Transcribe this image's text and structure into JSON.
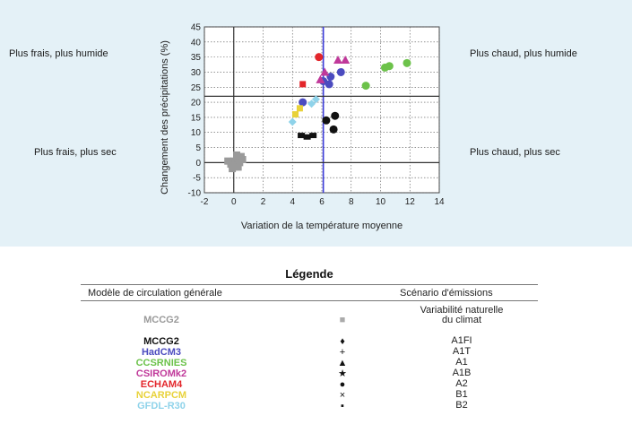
{
  "quadrants": {
    "top_left": "Plus frais, plus humide",
    "top_right": "Plus chaud, plus humide",
    "bottom_left": "Plus frais, plus sec",
    "bottom_right": "Plus chaud, plus sec"
  },
  "chart_data": {
    "type": "scatter",
    "title": "",
    "xlabel": "Variation de la température moyenne",
    "ylabel": "Changement des précipitations (%)",
    "xlim": [
      -2,
      14
    ],
    "ylim": [
      -10,
      45
    ],
    "xticks": [
      -2,
      0,
      2,
      4,
      6,
      8,
      10,
      12,
      14
    ],
    "yticks": [
      -10,
      -5,
      0,
      5,
      10,
      15,
      20,
      25,
      30,
      35,
      40,
      45
    ],
    "grid": true,
    "reference_lines": {
      "vertical_x": [
        0,
        6.1
      ],
      "horizontal_y": [
        0,
        22
      ]
    },
    "series": [
      {
        "name": "MCCG2",
        "color": "#9a9a9a",
        "points": [
          [
            0.0,
            0.5
          ],
          [
            0.3,
            1.5
          ],
          [
            -0.2,
            -0.5
          ],
          [
            0.5,
            2.0
          ],
          [
            0.1,
            -1.0
          ],
          [
            0.4,
            0.0
          ],
          [
            -0.4,
            0.5
          ],
          [
            0.6,
            1.0
          ],
          [
            0.2,
            2.5
          ],
          [
            -0.1,
            -2.0
          ],
          [
            0.3,
            -1.5
          ]
        ]
      },
      {
        "name": "MCCG2",
        "color": "#111111",
        "points": [
          [
            6.3,
            14.0
          ],
          [
            6.8,
            11.0
          ],
          [
            6.9,
            15.5
          ],
          [
            4.6,
            9.0
          ],
          [
            5.0,
            8.5
          ],
          [
            5.4,
            9.0
          ]
        ]
      },
      {
        "name": "HadCM3",
        "color": "#4b4bbf",
        "points": [
          [
            4.7,
            20.0
          ],
          [
            6.1,
            27.0
          ],
          [
            6.5,
            26.0
          ],
          [
            7.3,
            30.0
          ],
          [
            6.6,
            28.5
          ]
        ]
      },
      {
        "name": "CCSRNIES",
        "color": "#6cc24a",
        "points": [
          [
            9.0,
            25.5
          ],
          [
            10.3,
            31.5
          ],
          [
            10.6,
            32.0
          ],
          [
            11.8,
            33.0
          ]
        ]
      },
      {
        "name": "CSIROMk2",
        "color": "#c0399a",
        "points": [
          [
            5.9,
            27.5
          ],
          [
            7.1,
            34.0
          ],
          [
            7.6,
            34.0
          ],
          [
            6.2,
            30.0
          ]
        ]
      },
      {
        "name": "ECHAM4",
        "color": "#e3262b",
        "points": [
          [
            4.7,
            26.0
          ],
          [
            5.8,
            35.0
          ]
        ]
      },
      {
        "name": "NCARPCM",
        "color": "#e8d23a",
        "points": [
          [
            4.2,
            16.0
          ],
          [
            4.5,
            18.0
          ]
        ]
      },
      {
        "name": "GFDL-R30",
        "color": "#8fd3ea",
        "points": [
          [
            4.0,
            13.5
          ],
          [
            5.3,
            19.5
          ],
          [
            5.6,
            21.0
          ]
        ]
      }
    ]
  },
  "legend": {
    "title": "Légende",
    "col_model": "Modèle de circulation générale",
    "col_scenario": "Scénario d'émissions",
    "rows": [
      {
        "model": "MCCG2",
        "color": "#9a9a9a",
        "symbol": "■",
        "scenario1": "Variabilité naturelle",
        "scenario2": "du climat"
      },
      {
        "model": "MCCG2",
        "color": "#111111",
        "symbol": "♦",
        "scenario1": "A1FI",
        "scenario2": ""
      },
      {
        "model": "HadCM3",
        "color": "#4b4bbf",
        "symbol": "+",
        "scenario1": "A1T",
        "scenario2": ""
      },
      {
        "model": "CCSRNIES",
        "color": "#6cc24a",
        "symbol": "▲",
        "scenario1": "A1",
        "scenario2": ""
      },
      {
        "model": "CSIROMk2",
        "color": "#c0399a",
        "symbol": "★",
        "scenario1": "A1B",
        "scenario2": ""
      },
      {
        "model": "ECHAM4",
        "color": "#e3262b",
        "symbol": "●",
        "scenario1": "A2",
        "scenario2": ""
      },
      {
        "model": "NCARPCM",
        "color": "#e8d23a",
        "symbol": "×",
        "scenario1": "B1",
        "scenario2": ""
      },
      {
        "model": "GFDL-R30",
        "color": "#8fd3ea",
        "symbol": "▪",
        "scenario1": "B2",
        "scenario2": ""
      }
    ]
  }
}
